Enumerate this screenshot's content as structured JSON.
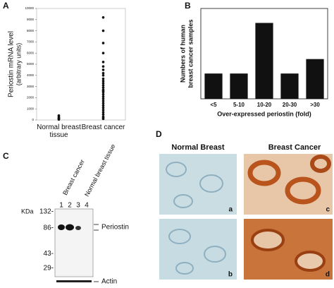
{
  "panel_labels": [
    "A",
    "B",
    "C",
    "D"
  ],
  "chart_data": [
    {
      "type": "strip",
      "ylabel_lines": [
        "Periostin mRNA level",
        "(arbitrary units)"
      ],
      "categories": [
        "Normal breast tissue",
        "Breast cancer"
      ],
      "values": [
        [
          50,
          100,
          150,
          200,
          300,
          400
        ],
        [
          9200,
          8000,
          6900,
          6000,
          5200,
          4800,
          4500,
          4200,
          4000,
          3700,
          3500,
          3300,
          3100,
          2900,
          2700,
          2600,
          2500,
          2300,
          2100,
          1900,
          1700,
          1500,
          1300,
          1100,
          900,
          700,
          500,
          300,
          200,
          100
        ]
      ],
      "color": "#111111",
      "ylim": [
        0,
        10000
      ],
      "yticks": [
        0,
        1000,
        2000,
        3000,
        4000,
        5000,
        6000,
        7000,
        8000,
        9000,
        10000
      ]
    },
    {
      "type": "bar",
      "ylabel_lines": [
        "Numbers of human",
        "breast cancer samples"
      ],
      "xlabel": "Over-expressed periostin (fold)",
      "categories": [
        "<5",
        "5-10",
        "10-20",
        "20-30",
        ">30"
      ],
      "values": [
        7,
        7,
        21,
        7,
        11
      ],
      "color": "#111111",
      "ylim": [
        0,
        25
      ]
    }
  ],
  "blot": {
    "mw_label": "KDa",
    "markers": [
      {
        "value": 132,
        "label": "132-"
      },
      {
        "value": 86,
        "label": "86-"
      },
      {
        "value": 43,
        "label": "43-"
      },
      {
        "value": 29,
        "label": "29-"
      }
    ],
    "lanes": [
      "1",
      "2",
      "3",
      "4"
    ],
    "lane_labels": [
      "Breast cancer",
      "Normal breast tissue"
    ],
    "bands": [
      "Periostin",
      "Actin"
    ]
  },
  "micrographs": {
    "columns": [
      "Normal Breast",
      "Breast Cancer"
    ],
    "panels": [
      "a",
      "b",
      "c",
      "d"
    ]
  }
}
